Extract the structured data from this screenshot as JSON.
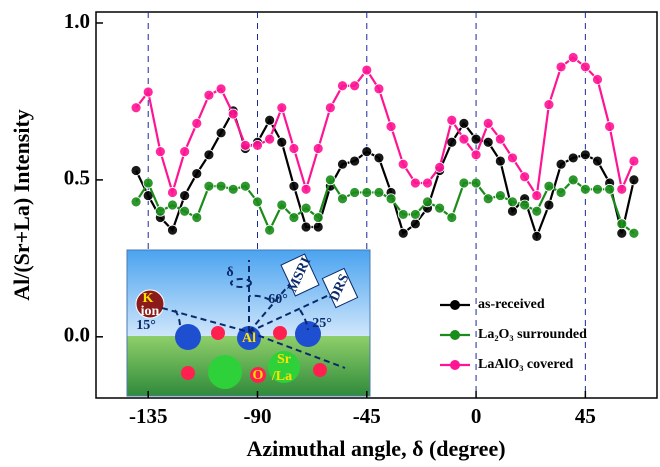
{
  "chart_data": {
    "type": "line",
    "xlabel": "Azimuthal angle, δ (degree)",
    "ylabel": "Al/(Sr+La) Intensity",
    "x": [
      -140,
      -135,
      -130,
      -125,
      -120,
      -115,
      -110,
      -105,
      -100,
      -95,
      -90,
      -85,
      -80,
      -75,
      -70,
      -65,
      -60,
      -55,
      -50,
      -45,
      -40,
      -35,
      -30,
      -25,
      -20,
      -15,
      -10,
      -5,
      0,
      5,
      10,
      15,
      20,
      25,
      30,
      35,
      40,
      45,
      50,
      55,
      60,
      65
    ],
    "series": [
      {
        "name": "as-received",
        "color": "#000000",
        "values": [
          0.53,
          0.45,
          0.38,
          0.34,
          0.45,
          0.52,
          0.58,
          0.65,
          0.72,
          0.6,
          0.62,
          0.69,
          0.62,
          0.48,
          0.35,
          0.35,
          0.48,
          0.55,
          0.56,
          0.59,
          0.57,
          0.46,
          0.33,
          0.36,
          0.41,
          0.53,
          0.62,
          0.68,
          0.63,
          0.62,
          0.56,
          0.4,
          0.44,
          0.32,
          0.42,
          0.55,
          0.57,
          0.58,
          0.56,
          0.49,
          0.33,
          0.5
        ]
      },
      {
        "name": "La₂O₃ surrounded",
        "color": "#1a8c1a",
        "values": [
          0.43,
          0.49,
          0.4,
          0.42,
          0.4,
          0.38,
          0.48,
          0.48,
          0.47,
          0.48,
          0.43,
          0.34,
          0.42,
          0.38,
          0.41,
          0.38,
          0.5,
          0.44,
          0.46,
          0.46,
          0.46,
          0.44,
          0.39,
          0.39,
          0.43,
          0.41,
          0.38,
          0.49,
          0.49,
          0.44,
          0.45,
          0.43,
          0.42,
          0.4,
          0.48,
          0.46,
          0.5,
          0.47,
          0.47,
          0.47,
          0.36,
          0.33
        ]
      },
      {
        "name": "LaAlO₃ covered",
        "color": "#ff1493",
        "values": [
          0.73,
          0.78,
          0.59,
          0.46,
          0.59,
          0.68,
          0.77,
          0.79,
          0.71,
          0.61,
          0.61,
          0.63,
          0.73,
          0.6,
          0.47,
          0.6,
          0.73,
          0.8,
          0.8,
          0.85,
          0.79,
          0.67,
          0.55,
          0.49,
          0.49,
          0.54,
          0.69,
          0.63,
          0.58,
          0.68,
          0.63,
          0.57,
          0.51,
          0.45,
          0.74,
          0.86,
          0.89,
          0.86,
          0.82,
          0.67,
          0.47,
          0.56
        ]
      }
    ],
    "xlim": [
      -156.5,
      74.5
    ],
    "ylim": [
      -0.195,
      1.035
    ],
    "xticks": [
      -135,
      -90,
      -45,
      0,
      45
    ],
    "yticks": [
      {
        "value": 0,
        "label": "0.0"
      },
      0.5,
      {
        "value": 1,
        "label": "1.0"
      }
    ],
    "x_grid": true,
    "legend": "lower right",
    "inset_labels": [
      "K",
      "ion",
      "15°",
      "δ",
      "MSRI",
      "DRS",
      "60°",
      "25°",
      "Al",
      "O",
      "Sr",
      "/La"
    ]
  }
}
